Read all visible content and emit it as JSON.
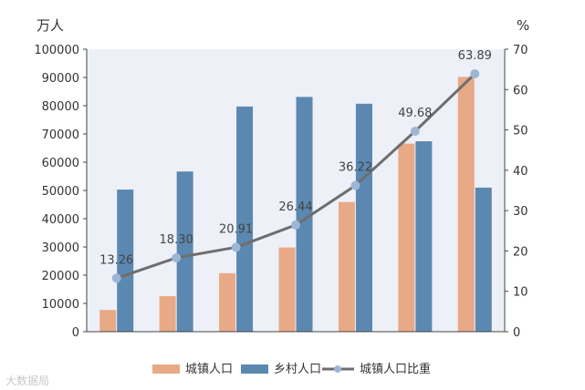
{
  "chart_data": {
    "type": "bar",
    "categories": [
      "",
      "",
      "",
      "",
      "",
      "",
      ""
    ],
    "y_left_unit": "万人",
    "y_right_unit": "%",
    "ylim_left": [
      0,
      100000
    ],
    "ylim_right": [
      0,
      70
    ],
    "y_left_ticks": [
      "0",
      "10000",
      "20000",
      "30000",
      "40000",
      "50000",
      "60000",
      "70000",
      "80000",
      "90000",
      "100000"
    ],
    "y_right_ticks": [
      "0",
      "10",
      "20",
      "30",
      "40",
      "50",
      "60",
      "70"
    ],
    "legend_position": "bottom",
    "grid": false,
    "series": [
      {
        "name": "城镇人口",
        "type": "bar",
        "axis": "left",
        "color": "#e8a987",
        "values": [
          7700,
          12600,
          20700,
          29800,
          45900,
          66600,
          90200
        ]
      },
      {
        "name": "乡村人口",
        "type": "bar",
        "axis": "left",
        "color": "#5b88b0",
        "values": [
          50300,
          56700,
          79700,
          83100,
          80700,
          67400,
          51000
        ]
      },
      {
        "name": "城镇人口比重",
        "type": "line",
        "axis": "right",
        "color": "#6e6e6e",
        "marker_color": "#9db6d6",
        "values": [
          13.26,
          18.3,
          20.91,
          26.44,
          36.22,
          49.68,
          63.89
        ],
        "labels": [
          "13.26",
          "18.30",
          "20.91",
          "26.44",
          "36.22",
          "49.68",
          "63.89"
        ]
      }
    ],
    "plot_background": "#eef0f8"
  },
  "watermark": "大数据局"
}
